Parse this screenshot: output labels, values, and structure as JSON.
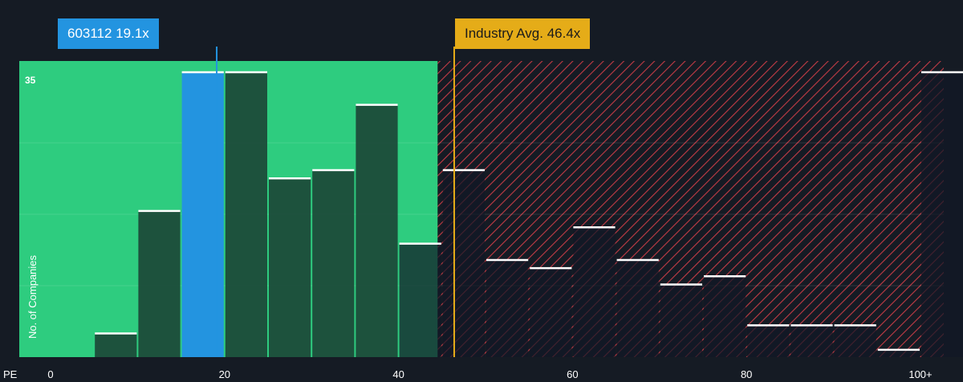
{
  "callouts": {
    "company": "603112 19.1x",
    "industry": "Industry Avg. 46.4x"
  },
  "colors": {
    "background": "#151b24",
    "good_zone": "#2ecc7f",
    "bar_fill": "#1c4b3a",
    "highlight": "#2394e0",
    "industry_line": "#e5ac18",
    "hatch": "#c23b45",
    "bar_cap": "#ffffff"
  },
  "chart_data": {
    "type": "bar",
    "xlabel": "PE",
    "ylabel": "No. of Companies",
    "x_ticks": [
      "0",
      "20",
      "40",
      "60",
      "80",
      "100+"
    ],
    "x_tick_values": [
      0,
      20,
      40,
      60,
      80,
      100
    ],
    "y_max_label": "35",
    "ylim": [
      0,
      35
    ],
    "bin_width": 5,
    "bins_start": [
      5,
      10,
      15,
      20,
      25,
      30,
      35,
      40,
      45,
      50,
      55,
      60,
      65,
      70,
      75,
      80,
      85,
      90,
      95,
      100
    ],
    "values": [
      3,
      18,
      35,
      35,
      22,
      23,
      31,
      14,
      23,
      12,
      11,
      16,
      12,
      9,
      10,
      4,
      4,
      4,
      1,
      35
    ],
    "highlight_bin_start": 15,
    "company_pe": 19.1,
    "industry_avg_pe": 46.4,
    "good_zone_end": 44.5,
    "grid": true
  }
}
